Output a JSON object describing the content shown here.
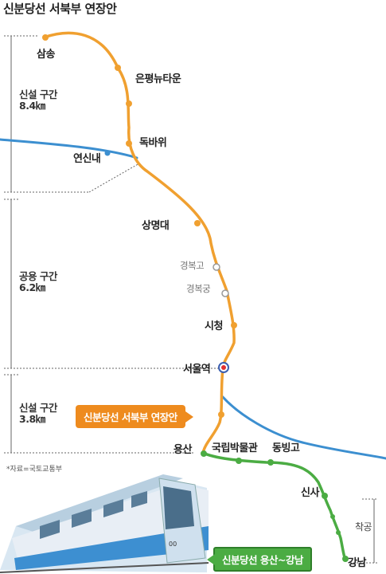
{
  "title": "신분당선 서북부 연장안",
  "sections": [
    {
      "name": "신설 구간",
      "distance": "8.4㎞"
    },
    {
      "name": "공용 구간",
      "distance": "6.2㎞"
    },
    {
      "name": "신설 구간",
      "distance": "3.8㎞"
    }
  ],
  "stations": {
    "samsong": "삼송",
    "eunpyeong": "은평뉴타운",
    "dokbawi": "독바위",
    "yeonsinnae": "연신내",
    "sangmyeongdae": "상명대",
    "gyeongbokgo": "경복고",
    "gyeongbokgung": "경복궁",
    "sicheong": "시청",
    "seoulyeok": "서울역",
    "yongsan": "용산",
    "museum": "국립박물관",
    "dongbinggo": "동빙고",
    "sinsa": "신사",
    "gangnam": "강남"
  },
  "construction_label": "착공",
  "source": "*자료=국토교통부",
  "badges": {
    "northwest": "신분당선 서북부 연장안",
    "yongsan_gangnam": "신분당선 용산~강남"
  },
  "train_number": "00",
  "colors": {
    "extension_line": "#f0a030",
    "existing_line": "#3c8fd0",
    "gangnam_line": "#4bac43",
    "badge_orange": "#ee8b1e",
    "badge_green": "#4bac43"
  }
}
